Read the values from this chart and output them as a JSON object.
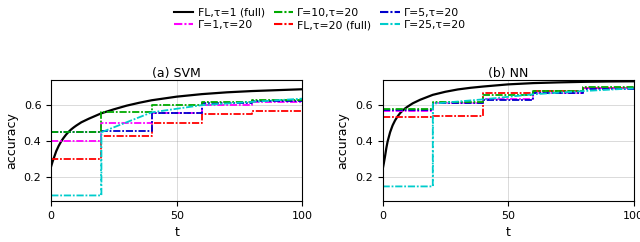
{
  "title_left": "(a) SVM",
  "title_right": "(b) NN",
  "xlabel": "t",
  "ylabel": "accuracy",
  "xlim": [
    0,
    100
  ],
  "ylim": [
    0.07,
    0.74
  ],
  "yticks": [
    0.2,
    0.4,
    0.6
  ],
  "xticks": [
    0,
    50,
    100
  ],
  "fl_tau1_svm": {
    "x": [
      0,
      0.5,
      1,
      1.5,
      2,
      3,
      4,
      5,
      6,
      7,
      8,
      9,
      10,
      12,
      15,
      20,
      25,
      30,
      35,
      40,
      50,
      60,
      70,
      80,
      90,
      100
    ],
    "y": [
      0.262,
      0.285,
      0.305,
      0.325,
      0.345,
      0.375,
      0.4,
      0.42,
      0.438,
      0.453,
      0.466,
      0.477,
      0.487,
      0.505,
      0.525,
      0.555,
      0.577,
      0.597,
      0.613,
      0.627,
      0.647,
      0.661,
      0.671,
      0.678,
      0.683,
      0.688
    ]
  },
  "fl_tau1_nn": {
    "x": [
      0,
      0.5,
      1,
      1.5,
      2,
      3,
      4,
      5,
      6,
      7,
      8,
      9,
      10,
      12,
      15,
      20,
      25,
      30,
      35,
      40,
      50,
      60,
      70,
      80,
      90,
      100
    ],
    "y": [
      0.242,
      0.278,
      0.318,
      0.362,
      0.398,
      0.45,
      0.488,
      0.516,
      0.538,
      0.556,
      0.57,
      0.582,
      0.592,
      0.61,
      0.63,
      0.657,
      0.674,
      0.687,
      0.696,
      0.703,
      0.715,
      0.722,
      0.726,
      0.729,
      0.731,
      0.732
    ]
  },
  "fl_tau20_svm": {
    "x": [
      0,
      20,
      20,
      40,
      40,
      60,
      60,
      80,
      80,
      100
    ],
    "y": [
      0.3,
      0.3,
      0.43,
      0.43,
      0.5,
      0.5,
      0.55,
      0.55,
      0.57,
      0.57
    ]
  },
  "fl_tau20_nn": {
    "x": [
      0,
      20,
      20,
      40,
      40,
      60,
      60,
      80,
      80,
      100
    ],
    "y": [
      0.535,
      0.535,
      0.54,
      0.54,
      0.665,
      0.665,
      0.68,
      0.68,
      0.695,
      0.695
    ]
  },
  "gamma1_tau20_svm": {
    "x": [
      0,
      20,
      20,
      40,
      40,
      60,
      60,
      80,
      80,
      100
    ],
    "y": [
      0.4,
      0.4,
      0.5,
      0.5,
      0.555,
      0.555,
      0.6,
      0.6,
      0.615,
      0.615
    ]
  },
  "gamma1_tau20_nn": {
    "x": [
      0,
      20,
      20,
      40,
      40,
      60,
      60,
      80,
      80,
      100
    ],
    "y": [
      0.57,
      0.57,
      0.61,
      0.61,
      0.635,
      0.635,
      0.67,
      0.67,
      0.695,
      0.695
    ]
  },
  "gamma5_tau20_svm": {
    "x": [
      0,
      20,
      20,
      40,
      40,
      60,
      60,
      80,
      80,
      100
    ],
    "y": [
      0.45,
      0.45,
      0.455,
      0.455,
      0.556,
      0.556,
      0.613,
      0.613,
      0.622,
      0.622
    ]
  },
  "gamma5_tau20_nn": {
    "x": [
      0,
      20,
      20,
      40,
      40,
      60,
      60,
      80,
      80,
      100
    ],
    "y": [
      0.575,
      0.575,
      0.61,
      0.61,
      0.63,
      0.63,
      0.665,
      0.665,
      0.69,
      0.69
    ]
  },
  "gamma10_tau20_svm": {
    "x": [
      0,
      20,
      20,
      40,
      40,
      60,
      60,
      80,
      80,
      100
    ],
    "y": [
      0.45,
      0.45,
      0.56,
      0.56,
      0.603,
      0.603,
      0.618,
      0.618,
      0.628,
      0.628
    ]
  },
  "gamma10_tau20_nn": {
    "x": [
      0,
      20,
      20,
      40,
      40,
      60,
      60,
      80,
      80,
      100
    ],
    "y": [
      0.58,
      0.58,
      0.615,
      0.615,
      0.655,
      0.655,
      0.678,
      0.678,
      0.7,
      0.7
    ]
  },
  "gamma25_tau20_svm": {
    "x": [
      0,
      20,
      20,
      20.01,
      20.01,
      40,
      40,
      60,
      60,
      80,
      80,
      100
    ],
    "y": [
      0.1,
      0.1,
      0.1,
      0.45,
      0.45,
      0.56,
      0.56,
      0.6,
      0.6,
      0.618,
      0.618,
      0.636
    ]
  },
  "gamma25_tau20_nn": {
    "x": [
      0,
      20,
      20,
      20.01,
      20.01,
      40,
      40,
      60,
      60,
      80,
      80,
      100
    ],
    "y": [
      0.15,
      0.15,
      0.15,
      0.608,
      0.608,
      0.632,
      0.632,
      0.66,
      0.66,
      0.678,
      0.678,
      0.693
    ]
  },
  "gamma25_dotted_svm": {
    "x": [
      20,
      20
    ],
    "y": [
      0.1,
      0.45
    ]
  },
  "gamma25_dotted_nn": {
    "x": [
      20,
      20
    ],
    "y": [
      0.15,
      0.608
    ]
  },
  "colors": {
    "fl_tau1": "#000000",
    "fl_tau20": "#ff0000",
    "gamma1": "#ff00ff",
    "gamma5": "#0000cc",
    "gamma10": "#00aa00",
    "gamma25": "#00cccc"
  },
  "legend_row1": [
    {
      "label": "FL,τ=1 (full)",
      "color": "#000000",
      "ls": "solid"
    },
    {
      "label": "Γ=1,τ=20",
      "color": "#ff00ff",
      "ls": "dashdot"
    },
    {
      "label": "Γ=10,τ=20",
      "color": "#00aa00",
      "ls": "dashdot"
    }
  ],
  "legend_row2": [
    {
      "label": "FL,τ=20 (full)",
      "color": "#ff0000",
      "ls": "dashdot"
    },
    {
      "label": "Γ=5,τ=20",
      "color": "#0000cc",
      "ls": "dashdot"
    },
    {
      "label": "Γ=25,τ=20",
      "color": "#00cccc",
      "ls": "dashdot"
    }
  ]
}
